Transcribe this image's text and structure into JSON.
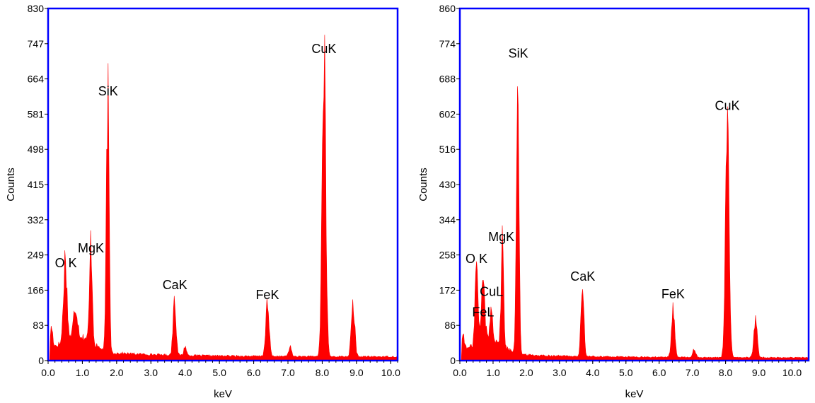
{
  "chart_data": [
    {
      "type": "area",
      "ylabel": "Counts",
      "xlabel": "keV",
      "xlim": [
        0.0,
        10.2
      ],
      "ylim": [
        0,
        830
      ],
      "yticks": [
        0,
        83,
        166,
        249,
        332,
        415,
        498,
        581,
        664,
        747,
        830
      ],
      "ytick_labels": [
        "0",
        "83",
        "166",
        "249",
        "332",
        "415",
        "498",
        "581",
        "664",
        "747",
        "830"
      ],
      "xticks": [
        0.0,
        1.0,
        2.0,
        3.0,
        4.0,
        5.0,
        6.0,
        7.0,
        8.0,
        9.0,
        10.0
      ],
      "xtick_labels": [
        "0.0",
        "1.0",
        "2.0",
        "3.0",
        "4.0",
        "5.0",
        "6.0",
        "7.0",
        "8.0",
        "9.0",
        "10.0"
      ],
      "baseline": 15,
      "peaks": [
        {
          "x": 0.1,
          "y": 45,
          "w": 0.05
        },
        {
          "x": 0.5,
          "y": 195,
          "w": 0.07
        },
        {
          "x": 0.8,
          "y": 70,
          "w": 0.08
        },
        {
          "x": 1.25,
          "y": 235,
          "w": 0.055
        },
        {
          "x": 1.74,
          "y": 600,
          "w": 0.055
        },
        {
          "x": 3.69,
          "y": 140,
          "w": 0.06
        },
        {
          "x": 4.0,
          "y": 22,
          "w": 0.05
        },
        {
          "x": 6.4,
          "y": 120,
          "w": 0.07
        },
        {
          "x": 7.06,
          "y": 22,
          "w": 0.06
        },
        {
          "x": 8.05,
          "y": 700,
          "w": 0.075
        },
        {
          "x": 8.9,
          "y": 120,
          "w": 0.07
        }
      ],
      "peak_labels": [
        {
          "text": "O K",
          "x": 0.52,
          "y": 220
        },
        {
          "text": "MgK",
          "x": 1.25,
          "y": 255
        },
        {
          "text": "SiK",
          "x": 1.75,
          "y": 625
        },
        {
          "text": "CaK",
          "x": 3.7,
          "y": 168
        },
        {
          "text": "FeK",
          "x": 6.4,
          "y": 145
        },
        {
          "text": "CuK",
          "x": 8.05,
          "y": 725
        }
      ],
      "color": "#ff0000",
      "frame_color": "#0000ff"
    },
    {
      "type": "area",
      "ylabel": "Counts",
      "xlabel": "keV",
      "xlim": [
        0.0,
        10.5
      ],
      "ylim": [
        0,
        860
      ],
      "yticks": [
        0,
        86,
        172,
        258,
        344,
        430,
        516,
        602,
        688,
        774,
        860
      ],
      "ytick_labels": [
        "0",
        "86",
        "172",
        "258",
        "344",
        "430",
        "516",
        "602",
        "688",
        "774",
        "860"
      ],
      "xticks": [
        0.0,
        1.0,
        2.0,
        3.0,
        4.0,
        5.0,
        6.0,
        7.0,
        8.0,
        9.0,
        10.0
      ],
      "xtick_labels": [
        "0.0",
        "1.0",
        "2.0",
        "3.0",
        "4.0",
        "5.0",
        "6.0",
        "7.0",
        "8.0",
        "9.0",
        "10.0"
      ],
      "baseline": 12,
      "peaks": [
        {
          "x": 0.1,
          "y": 40,
          "w": 0.05
        },
        {
          "x": 0.5,
          "y": 195,
          "w": 0.06
        },
        {
          "x": 0.7,
          "y": 150,
          "w": 0.07
        },
        {
          "x": 0.95,
          "y": 70,
          "w": 0.06
        },
        {
          "x": 1.28,
          "y": 265,
          "w": 0.05
        },
        {
          "x": 1.74,
          "y": 715,
          "w": 0.055
        },
        {
          "x": 3.69,
          "y": 175,
          "w": 0.06
        },
        {
          "x": 6.42,
          "y": 115,
          "w": 0.07
        },
        {
          "x": 7.06,
          "y": 20,
          "w": 0.06
        },
        {
          "x": 8.05,
          "y": 590,
          "w": 0.075
        },
        {
          "x": 8.9,
          "y": 95,
          "w": 0.07
        }
      ],
      "peak_labels": [
        {
          "text": "O K",
          "x": 0.5,
          "y": 238
        },
        {
          "text": "CuL",
          "x": 0.95,
          "y": 158
        },
        {
          "text": "FeL",
          "x": 0.7,
          "y": 108
        },
        {
          "text": "MgK",
          "x": 1.25,
          "y": 292
        },
        {
          "text": "SiK",
          "x": 1.76,
          "y": 740
        },
        {
          "text": "CaK",
          "x": 3.7,
          "y": 195
        },
        {
          "text": "FeK",
          "x": 6.42,
          "y": 152
        },
        {
          "text": "CuK",
          "x": 8.05,
          "y": 612
        }
      ],
      "color": "#ff0000",
      "frame_color": "#0000ff"
    }
  ]
}
